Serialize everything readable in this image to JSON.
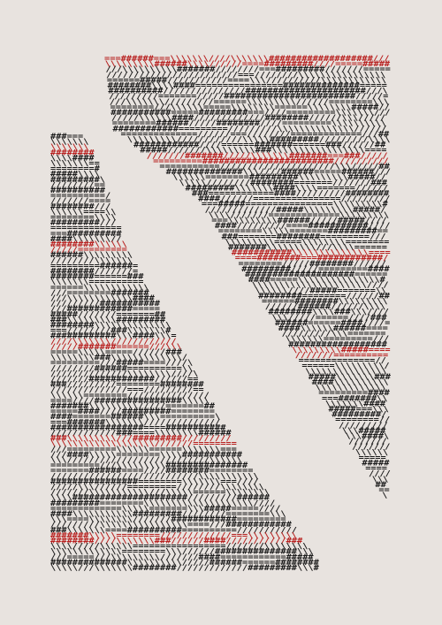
{
  "poster": {
    "background": "#e8e3df",
    "ink_color": "#1a1a1a",
    "accent_color": "#b8201f",
    "glyphs": [
      "#",
      "/",
      "=",
      "\\"
    ],
    "left_block": {
      "band_start_rows": [
        2,
        20,
        38,
        56,
        74
      ]
    },
    "right_block": {
      "band_start_rows": [
        0,
        18,
        36,
        54
      ]
    }
  }
}
